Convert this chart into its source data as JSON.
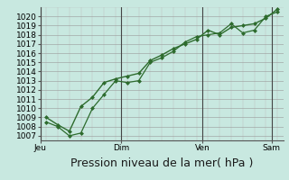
{
  "background_color": "#c8e8e0",
  "plot_bg_color": "#c8e8e0",
  "grid_major_color": "#999999",
  "grid_minor_color": "#bbbbbb",
  "line_color": "#2d6b2d",
  "marker_color": "#2d6b2d",
  "ylim": [
    1006.5,
    1021.0
  ],
  "yticks": [
    1007,
    1008,
    1009,
    1010,
    1011,
    1012,
    1013,
    1014,
    1015,
    1016,
    1017,
    1018,
    1019,
    1020
  ],
  "xlabel": "Pression niveau de la mer( hPa )",
  "xlabel_fontsize": 9,
  "tick_fontsize": 6.5,
  "xtick_labels": [
    "Jeu",
    "Dim",
    "Ven",
    "Sam"
  ],
  "num_points": 21,
  "line1_y": [
    1008.5,
    1008.0,
    1007.0,
    1007.3,
    1010.0,
    1011.5,
    1013.0,
    1012.8,
    1013.0,
    1015.0,
    1015.5,
    1016.2,
    1017.2,
    1017.8,
    1018.0,
    1018.2,
    1019.2,
    1018.2,
    1018.5,
    1020.0,
    1020.5
  ],
  "line2_y": [
    1009.0,
    1008.2,
    1007.5,
    1010.2,
    1011.2,
    1012.8,
    1013.2,
    1013.5,
    1013.8,
    1015.2,
    1015.8,
    1016.5,
    1017.0,
    1017.5,
    1018.5,
    1018.0,
    1018.8,
    1019.0,
    1019.2,
    1019.8,
    1020.8
  ]
}
